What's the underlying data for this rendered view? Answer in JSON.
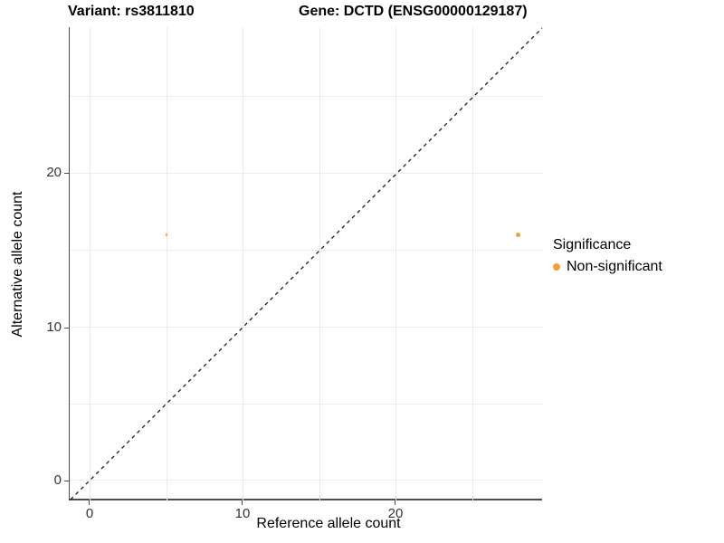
{
  "title": {
    "variant": "Variant: rs3811810",
    "gene": "Gene: DCTD (ENSG00000129187)"
  },
  "axes": {
    "x": {
      "label": "Reference allele count",
      "ticks": [
        "0",
        "10",
        "20"
      ]
    },
    "y": {
      "label": "Alternative allele count",
      "ticks": [
        "20",
        "10",
        "0"
      ]
    }
  },
  "legend": {
    "title": "Significance",
    "items": [
      {
        "label": "Non-significant",
        "color": "#F89D3C"
      }
    ]
  },
  "colors": {
    "point_orange": "#F89D3C",
    "axis_line": "#4d4d4d",
    "tick_text": "#333333",
    "gridline": "#ececec",
    "dashed_line": "#1a1a1a",
    "background": "#ffffff"
  },
  "chart_data": {
    "type": "scatter",
    "title": "Variant: rs3811810 | Gene: DCTD (ENSG00000129187)",
    "xlabel": "Reference allele count",
    "ylabel": "Alternative allele count",
    "xlim": [
      -1.4,
      29.6
    ],
    "ylim": [
      -1.3,
      29.6
    ],
    "x_ticks": [
      0,
      10,
      20
    ],
    "y_ticks": [
      0,
      10,
      20
    ],
    "grid": "major and minor gridlines every 5 units, light gray",
    "legend_position": "right",
    "reference_line": {
      "type": "identity y = x",
      "style": "dashed",
      "color": "#1a1a1a"
    },
    "series": [
      {
        "name": "Non-significant",
        "color": "#F89D3C",
        "points": [
          {
            "x": 28,
            "y": 16,
            "r": 2.5
          },
          {
            "x": 5,
            "y": 16,
            "r": 1.3
          }
        ]
      }
    ]
  }
}
